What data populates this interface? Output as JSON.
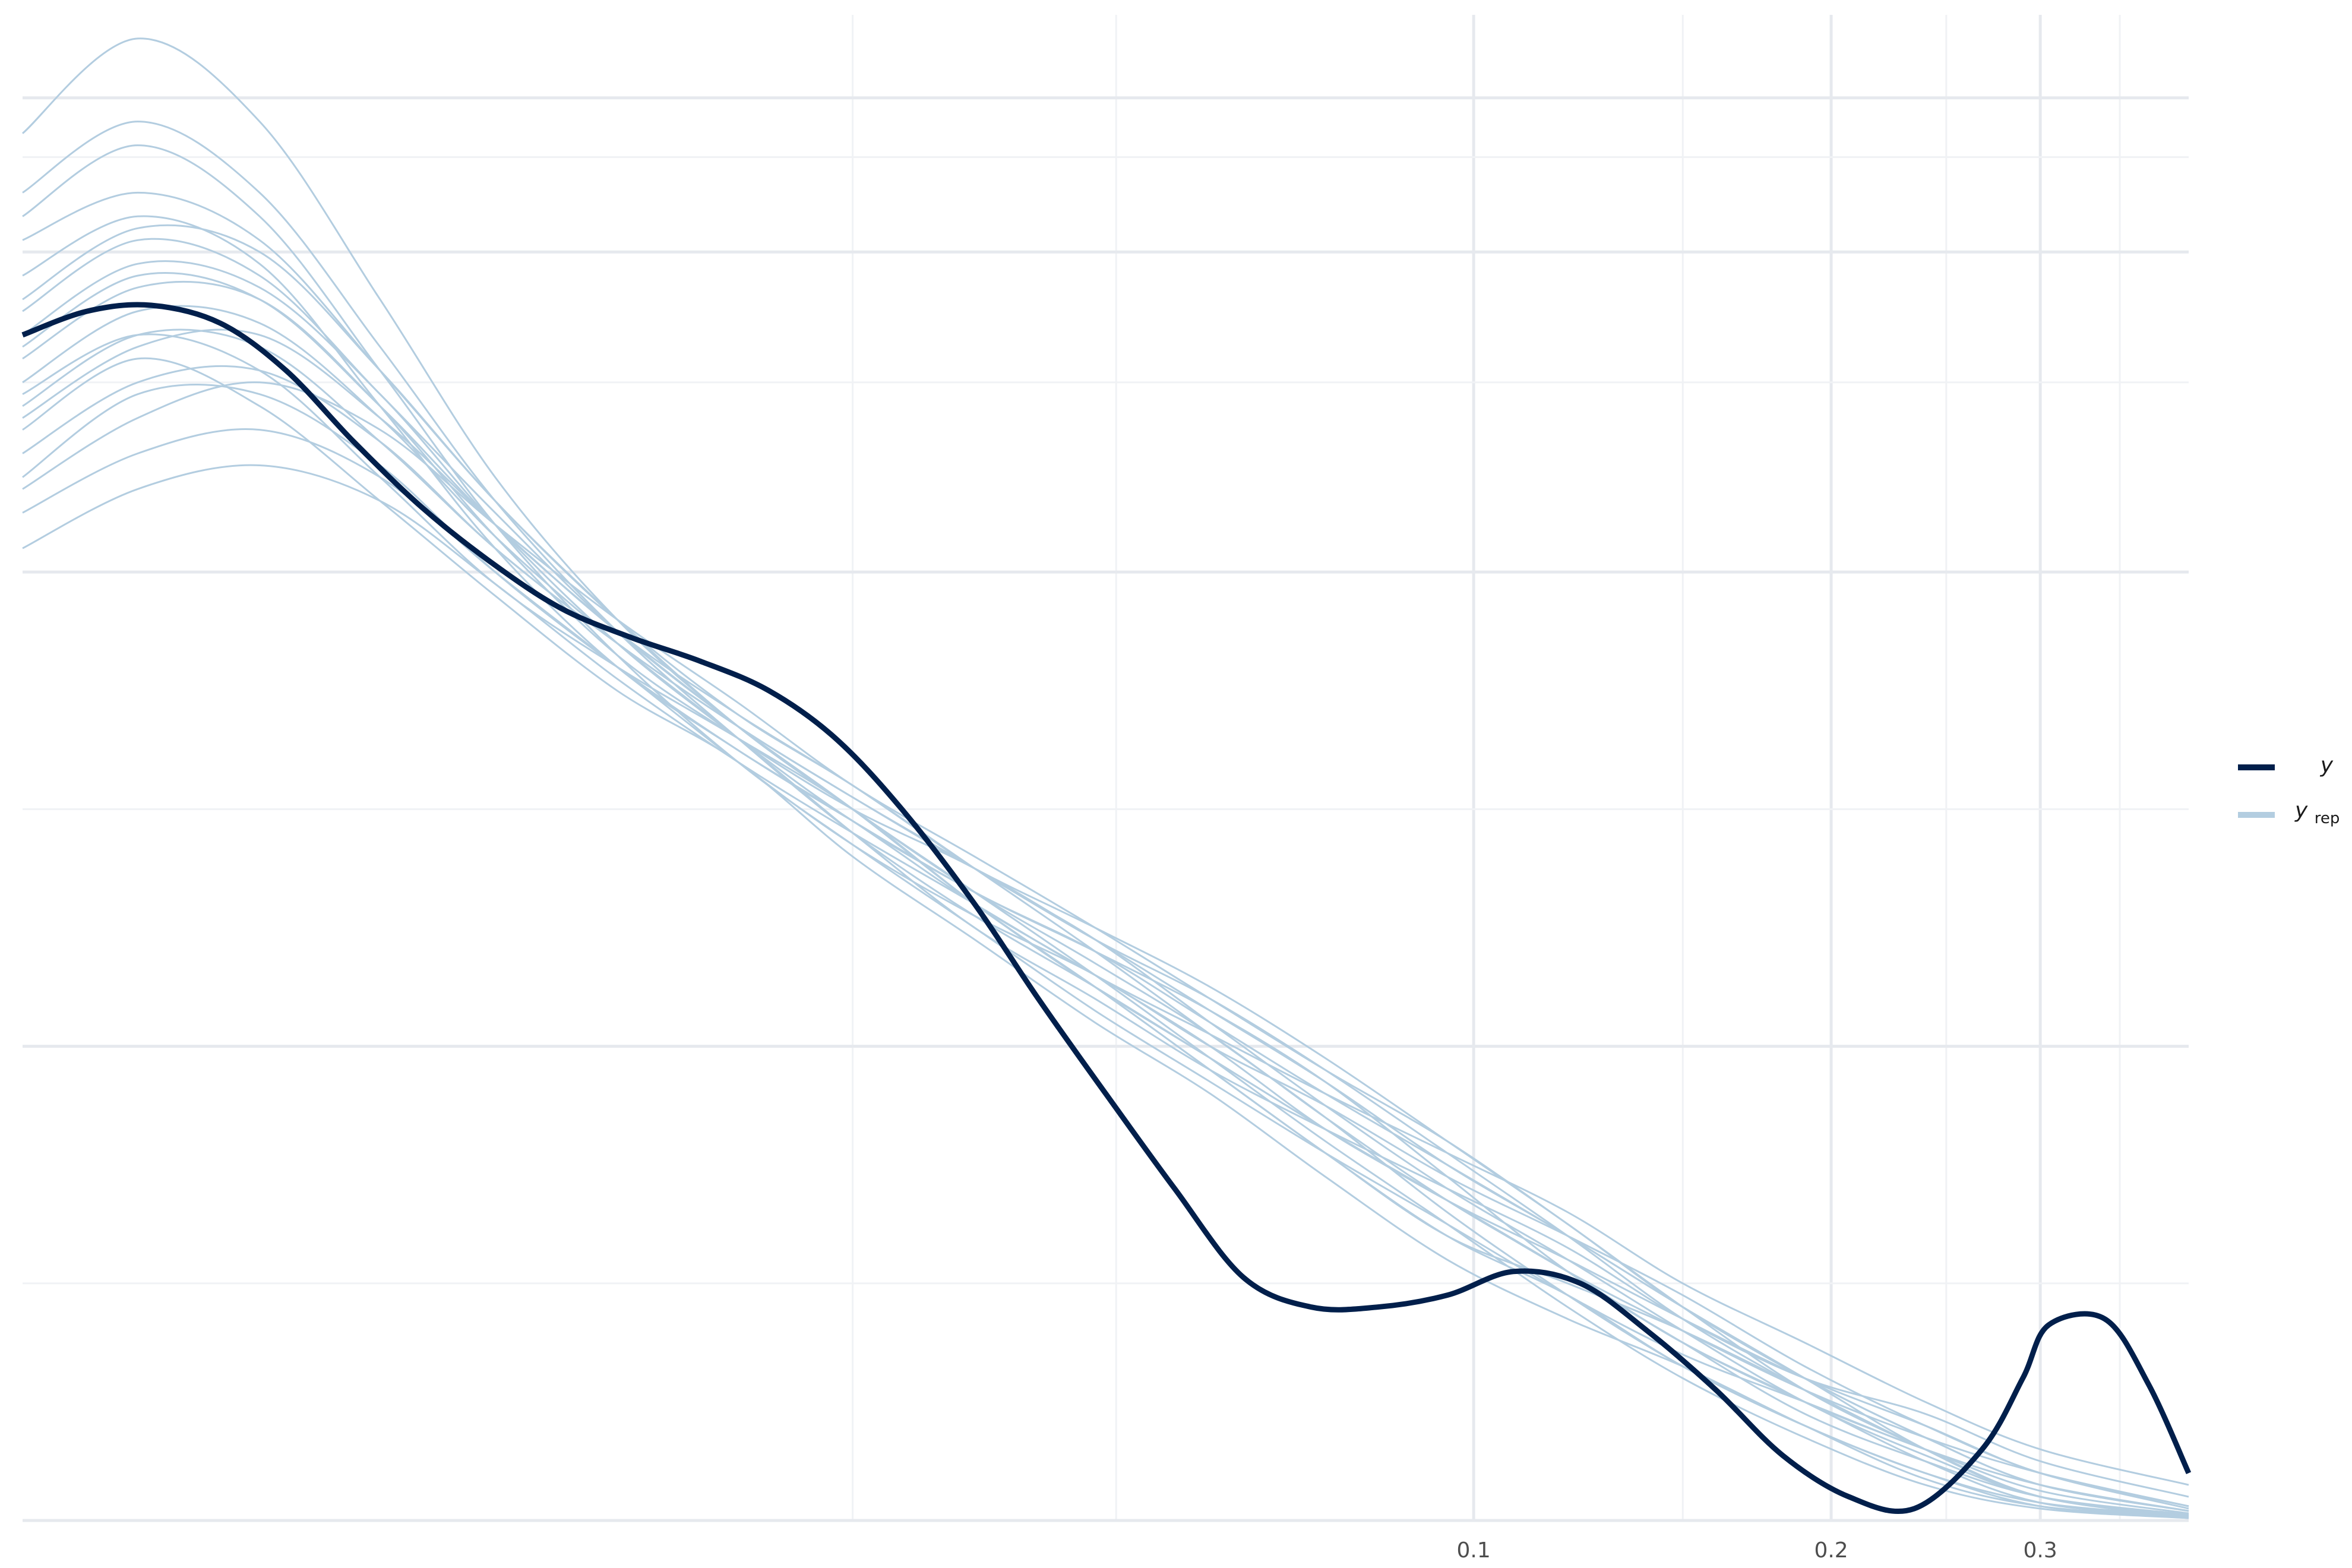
{
  "chart_data": {
    "type": "line",
    "title": "",
    "xlabel": "",
    "ylabel": "",
    "x_transform": "log",
    "xlim": [
      0.006,
      0.4
    ],
    "ylim": [
      0,
      1.27
    ],
    "x_ticks": [
      {
        "value": 0.1,
        "label": "0.1"
      },
      {
        "value": 0.2,
        "label": "0.2"
      },
      {
        "value": 0.3,
        "label": "0.3"
      }
    ],
    "y_ticks": [],
    "grid": true,
    "legend": {
      "placement": "right",
      "entries": [
        {
          "key": "y",
          "label": "y",
          "subscript": "",
          "color": "#011f4b"
        },
        {
          "key": "yrep",
          "label": "y",
          "subscript": "rep",
          "color": "#b3cde0"
        }
      ]
    },
    "colors": {
      "y": "#011f4b",
      "yrep": "#b3cde0",
      "grid": "#e6e9ee"
    },
    "series": [
      {
        "name": "y",
        "role": "observed",
        "x": [
          0.006,
          0.0068,
          0.0077,
          0.0088,
          0.01,
          0.0114,
          0.013,
          0.0148,
          0.017,
          0.0195,
          0.0223,
          0.0255,
          0.029,
          0.033,
          0.038,
          0.043,
          0.049,
          0.056,
          0.064,
          0.073,
          0.083,
          0.095,
          0.108,
          0.123,
          0.14,
          0.16,
          0.182,
          0.207,
          0.235,
          0.268,
          0.29,
          0.305,
          0.34,
          0.37,
          0.4
        ],
        "values": [
          1.0,
          1.02,
          1.025,
          1.01,
          0.97,
          0.91,
          0.855,
          0.81,
          0.77,
          0.745,
          0.725,
          0.7,
          0.66,
          0.6,
          0.52,
          0.44,
          0.36,
          0.28,
          0.205,
          0.18,
          0.18,
          0.19,
          0.21,
          0.2,
          0.16,
          0.11,
          0.055,
          0.02,
          0.01,
          0.06,
          0.12,
          0.165,
          0.17,
          0.115,
          0.04
        ]
      },
      {
        "name": "y",
        "sub": "rep",
        "x": [
          0.006,
          0.0075,
          0.0095,
          0.012,
          0.015,
          0.019,
          0.024,
          0.03,
          0.038,
          0.048,
          0.06,
          0.075,
          0.095,
          0.12,
          0.15,
          0.19,
          0.24,
          0.3,
          0.4
        ],
        "values": [
          0.92,
          0.98,
          0.94,
          0.86,
          0.78,
          0.7,
          0.64,
          0.56,
          0.49,
          0.42,
          0.36,
          0.29,
          0.22,
          0.17,
          0.13,
          0.08,
          0.035,
          0.012,
          0.003
        ]
      },
      {
        "name": "y",
        "sub": "rep",
        "x": [
          0.006,
          0.0075,
          0.0095,
          0.012,
          0.015,
          0.019,
          0.024,
          0.03,
          0.038,
          0.048,
          0.06,
          0.075,
          0.095,
          0.12,
          0.15,
          0.19,
          0.24,
          0.3,
          0.4
        ],
        "values": [
          0.95,
          1.0,
          0.97,
          0.88,
          0.79,
          0.72,
          0.66,
          0.6,
          0.52,
          0.45,
          0.38,
          0.31,
          0.24,
          0.2,
          0.16,
          0.11,
          0.06,
          0.02,
          0.004
        ]
      },
      {
        "name": "y",
        "sub": "rep",
        "x": [
          0.006,
          0.0075,
          0.0095,
          0.012,
          0.015,
          0.019,
          0.024,
          0.03,
          0.038,
          0.048,
          0.06,
          0.075,
          0.095,
          0.12,
          0.15,
          0.19,
          0.24,
          0.3,
          0.4
        ],
        "values": [
          1.02,
          1.08,
          1.05,
          0.95,
          0.85,
          0.75,
          0.67,
          0.6,
          0.53,
          0.47,
          0.41,
          0.34,
          0.27,
          0.21,
          0.15,
          0.1,
          0.05,
          0.015,
          0.003
        ]
      },
      {
        "name": "y",
        "sub": "rep",
        "x": [
          0.006,
          0.0075,
          0.0095,
          0.012,
          0.015,
          0.019,
          0.024,
          0.03,
          0.038,
          0.048,
          0.06,
          0.075,
          0.095,
          0.12,
          0.15,
          0.19,
          0.24,
          0.3,
          0.4
        ],
        "values": [
          0.88,
          0.95,
          0.95,
          0.89,
          0.8,
          0.72,
          0.65,
          0.59,
          0.53,
          0.48,
          0.42,
          0.36,
          0.3,
          0.24,
          0.18,
          0.12,
          0.07,
          0.03,
          0.008
        ]
      },
      {
        "name": "y",
        "sub": "rep",
        "x": [
          0.006,
          0.0075,
          0.0095,
          0.012,
          0.015,
          0.019,
          0.024,
          0.03,
          0.038,
          0.048,
          0.06,
          0.075,
          0.095,
          0.12,
          0.15,
          0.19,
          0.24,
          0.3,
          0.4
        ],
        "values": [
          1.08,
          1.12,
          1.08,
          0.97,
          0.86,
          0.76,
          0.68,
          0.62,
          0.55,
          0.49,
          0.42,
          0.35,
          0.28,
          0.22,
          0.16,
          0.1,
          0.055,
          0.02,
          0.005
        ]
      },
      {
        "name": "y",
        "sub": "rep",
        "x": [
          0.006,
          0.0075,
          0.0095,
          0.012,
          0.015,
          0.019,
          0.024,
          0.03,
          0.038,
          0.048,
          0.06,
          0.075,
          0.095,
          0.12,
          0.15,
          0.19,
          0.24,
          0.3,
          0.4
        ],
        "values": [
          1.17,
          1.25,
          1.18,
          1.03,
          0.88,
          0.76,
          0.67,
          0.6,
          0.52,
          0.45,
          0.38,
          0.31,
          0.24,
          0.19,
          0.13,
          0.08,
          0.04,
          0.012,
          0.002
        ]
      },
      {
        "name": "y",
        "sub": "rep",
        "x": [
          0.006,
          0.0075,
          0.0095,
          0.012,
          0.015,
          0.019,
          0.024,
          0.03,
          0.038,
          0.048,
          0.06,
          0.075,
          0.095,
          0.12,
          0.15,
          0.19,
          0.24,
          0.3,
          0.4
        ],
        "values": [
          0.85,
          0.9,
          0.92,
          0.88,
          0.8,
          0.72,
          0.64,
          0.57,
          0.51,
          0.46,
          0.4,
          0.35,
          0.29,
          0.24,
          0.19,
          0.13,
          0.08,
          0.04,
          0.01
        ]
      },
      {
        "name": "y",
        "sub": "rep",
        "x": [
          0.006,
          0.0075,
          0.0095,
          0.012,
          0.015,
          0.019,
          0.024,
          0.03,
          0.038,
          0.048,
          0.06,
          0.075,
          0.095,
          0.12,
          0.15,
          0.19,
          0.24,
          0.3,
          0.4
        ],
        "values": [
          0.98,
          1.04,
          1.03,
          0.94,
          0.83,
          0.73,
          0.66,
          0.6,
          0.55,
          0.49,
          0.43,
          0.37,
          0.3,
          0.24,
          0.18,
          0.12,
          0.06,
          0.02,
          0.004
        ]
      },
      {
        "name": "y",
        "sub": "rep",
        "x": [
          0.006,
          0.0075,
          0.0095,
          0.012,
          0.015,
          0.019,
          0.024,
          0.03,
          0.038,
          0.048,
          0.06,
          0.075,
          0.095,
          0.12,
          0.15,
          0.19,
          0.24,
          0.3,
          0.4
        ],
        "values": [
          1.05,
          1.1,
          1.06,
          0.94,
          0.82,
          0.72,
          0.65,
          0.59,
          0.52,
          0.46,
          0.4,
          0.33,
          0.27,
          0.21,
          0.16,
          0.11,
          0.07,
          0.04,
          0.012
        ]
      },
      {
        "name": "y",
        "sub": "rep",
        "x": [
          0.006,
          0.0075,
          0.0095,
          0.012,
          0.015,
          0.019,
          0.024,
          0.03,
          0.038,
          0.048,
          0.06,
          0.075,
          0.095,
          0.12,
          0.15,
          0.19,
          0.24,
          0.3,
          0.4
        ],
        "values": [
          0.93,
          0.99,
          1.0,
          0.93,
          0.84,
          0.75,
          0.68,
          0.62,
          0.55,
          0.48,
          0.41,
          0.34,
          0.26,
          0.19,
          0.13,
          0.08,
          0.04,
          0.015,
          0.004
        ]
      },
      {
        "name": "y",
        "sub": "rep",
        "x": [
          0.006,
          0.0075,
          0.0095,
          0.012,
          0.015,
          0.019,
          0.024,
          0.03,
          0.038,
          0.048,
          0.06,
          0.075,
          0.095,
          0.12,
          0.15,
          0.19,
          0.24,
          0.3,
          0.4
        ],
        "values": [
          0.9,
          0.96,
          0.97,
          0.91,
          0.82,
          0.74,
          0.67,
          0.61,
          0.55,
          0.49,
          0.44,
          0.38,
          0.31,
          0.24,
          0.17,
          0.11,
          0.06,
          0.02,
          0.005
        ]
      },
      {
        "name": "y",
        "sub": "rep",
        "x": [
          0.006,
          0.0075,
          0.0095,
          0.012,
          0.015,
          0.019,
          0.024,
          0.03,
          0.038,
          0.048,
          0.06,
          0.075,
          0.095,
          0.12,
          0.15,
          0.19,
          0.24,
          0.3,
          0.4
        ],
        "values": [
          1.0,
          1.06,
          1.04,
          0.95,
          0.84,
          0.74,
          0.66,
          0.59,
          0.53,
          0.48,
          0.43,
          0.37,
          0.29,
          0.21,
          0.15,
          0.09,
          0.05,
          0.02,
          0.005
        ]
      },
      {
        "name": "y",
        "sub": "rep",
        "x": [
          0.006,
          0.0075,
          0.0095,
          0.012,
          0.015,
          0.019,
          0.024,
          0.03,
          0.038,
          0.048,
          0.06,
          0.075,
          0.095,
          0.12,
          0.15,
          0.19,
          0.24,
          0.3,
          0.4
        ],
        "values": [
          0.96,
          1.02,
          1.01,
          0.93,
          0.83,
          0.74,
          0.66,
          0.58,
          0.5,
          0.44,
          0.38,
          0.33,
          0.28,
          0.23,
          0.17,
          0.12,
          0.09,
          0.05,
          0.02
        ]
      },
      {
        "name": "y",
        "sub": "rep",
        "x": [
          0.006,
          0.0075,
          0.0095,
          0.012,
          0.015,
          0.019,
          0.024,
          0.03,
          0.038,
          0.048,
          0.06,
          0.075,
          0.095,
          0.12,
          0.15,
          0.19,
          0.24,
          0.3,
          0.4
        ],
        "values": [
          1.1,
          1.16,
          1.1,
          0.97,
          0.84,
          0.73,
          0.64,
          0.57,
          0.5,
          0.43,
          0.37,
          0.31,
          0.25,
          0.19,
          0.14,
          0.1,
          0.06,
          0.03,
          0.008
        ]
      },
      {
        "name": "y",
        "sub": "rep",
        "x": [
          0.006,
          0.0075,
          0.0095,
          0.012,
          0.015,
          0.019,
          0.024,
          0.03,
          0.038,
          0.048,
          0.06,
          0.075,
          0.095,
          0.12,
          0.15,
          0.19,
          0.24,
          0.3,
          0.4
        ],
        "values": [
          0.87,
          0.93,
          0.96,
          0.92,
          0.84,
          0.76,
          0.69,
          0.62,
          0.56,
          0.5,
          0.44,
          0.38,
          0.32,
          0.25,
          0.18,
          0.11,
          0.06,
          0.02,
          0.003
        ]
      },
      {
        "name": "y",
        "sub": "rep",
        "x": [
          0.006,
          0.0075,
          0.0095,
          0.012,
          0.015,
          0.019,
          0.024,
          0.03,
          0.038,
          0.048,
          0.06,
          0.075,
          0.095,
          0.12,
          0.15,
          0.19,
          0.24,
          0.3,
          0.4
        ],
        "values": [
          0.82,
          0.87,
          0.89,
          0.86,
          0.79,
          0.71,
          0.64,
          0.58,
          0.52,
          0.46,
          0.41,
          0.36,
          0.31,
          0.26,
          0.2,
          0.15,
          0.1,
          0.06,
          0.03
        ]
      },
      {
        "name": "y",
        "sub": "rep",
        "x": [
          0.006,
          0.0075,
          0.0095,
          0.012,
          0.015,
          0.019,
          0.024,
          0.03,
          0.038,
          0.048,
          0.06,
          0.075,
          0.095,
          0.12,
          0.15,
          0.19,
          0.24,
          0.3,
          0.4
        ],
        "values": [
          1.03,
          1.09,
          1.07,
          0.97,
          0.86,
          0.76,
          0.67,
          0.6,
          0.53,
          0.46,
          0.39,
          0.32,
          0.25,
          0.18,
          0.12,
          0.07,
          0.03,
          0.01,
          0.002
        ]
      },
      {
        "name": "y",
        "sub": "rep",
        "x": [
          0.006,
          0.0075,
          0.0095,
          0.012,
          0.015,
          0.019,
          0.024,
          0.03,
          0.038,
          0.048,
          0.06,
          0.075,
          0.095,
          0.12,
          0.15,
          0.19,
          0.24,
          0.3,
          0.4
        ],
        "values": [
          0.94,
          1.0,
          0.99,
          0.91,
          0.82,
          0.74,
          0.67,
          0.61,
          0.55,
          0.5,
          0.45,
          0.39,
          0.32,
          0.25,
          0.18,
          0.12,
          0.07,
          0.03,
          0.008
        ]
      },
      {
        "name": "y",
        "sub": "rep",
        "x": [
          0.006,
          0.0075,
          0.0095,
          0.012,
          0.015,
          0.019,
          0.024,
          0.03,
          0.038,
          0.048,
          0.06,
          0.075,
          0.095,
          0.12,
          0.15,
          0.19,
          0.24,
          0.3,
          0.4
        ],
        "values": [
          1.12,
          1.18,
          1.12,
          0.99,
          0.86,
          0.75,
          0.66,
          0.58,
          0.51,
          0.45,
          0.39,
          0.33,
          0.27,
          0.21,
          0.15,
          0.1,
          0.06,
          0.025,
          0.006
        ]
      },
      {
        "name": "y",
        "sub": "rep",
        "x": [
          0.006,
          0.0075,
          0.0095,
          0.012,
          0.015,
          0.019,
          0.024,
          0.03,
          0.038,
          0.048,
          0.06,
          0.075,
          0.095,
          0.12,
          0.15,
          0.19,
          0.24,
          0.3,
          0.4
        ],
        "values": [
          0.99,
          1.05,
          1.03,
          0.94,
          0.84,
          0.75,
          0.67,
          0.6,
          0.52,
          0.45,
          0.39,
          0.33,
          0.27,
          0.22,
          0.17,
          0.12,
          0.08,
          0.04,
          0.012
        ]
      }
    ]
  }
}
